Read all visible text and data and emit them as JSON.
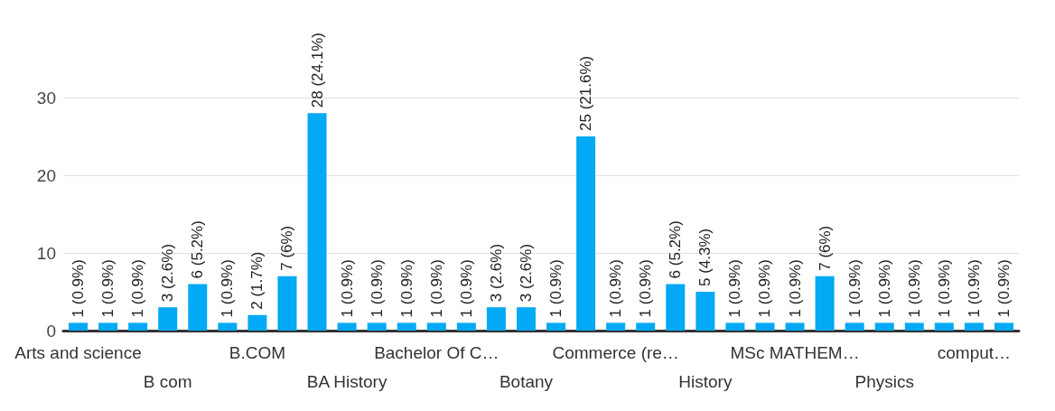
{
  "chart_data": {
    "type": "bar",
    "categories": [
      "Arts and science",
      null,
      null,
      "B com",
      null,
      null,
      "B.COM",
      null,
      null,
      "BA History",
      null,
      null,
      "Bachelor Of C…",
      null,
      null,
      "Botany",
      null,
      null,
      "Commerce (re…",
      null,
      null,
      "History",
      null,
      null,
      "MSc MATHEM…",
      null,
      null,
      "Physics",
      null,
      null,
      "comput…",
      null
    ],
    "values": [
      1,
      1,
      1,
      3,
      6,
      1,
      2,
      7,
      28,
      1,
      1,
      1,
      1,
      1,
      3,
      3,
      1,
      25,
      1,
      1,
      6,
      5,
      1,
      1,
      1,
      7,
      1,
      1,
      1,
      1,
      1,
      1
    ],
    "value_labels": [
      "1 (0.9%)",
      "1 (0.9%)",
      "1 (0.9%)",
      "3 (2.6%)",
      "6 (5.2%)",
      "1 (0.9%)",
      "2 (1.7%)",
      "7 (6%)",
      "28 (24.1%)",
      "1 (0.9%)",
      "1 (0.9%)",
      "1 (0.9%)",
      "1 (0.9%)",
      "1 (0.9%)",
      "3 (2.6%)",
      "3 (2.6%)",
      "1 (0.9%)",
      "25 (21.6%)",
      "1 (0.9%)",
      "1 (0.9%)",
      "6 (5.2%)",
      "5 (4.3%)",
      "1 (0.9%)",
      "1 (0.9%)",
      "1 (0.9%)",
      "7 (6%)",
      "1 (0.9%)",
      "1 (0.9%)",
      "1 (0.9%)",
      "1 (0.9%)",
      "1 (0.9%)",
      "1 (0.9%)"
    ],
    "color": "#03a9f4",
    "ylim": [
      0,
      30
    ],
    "yticks": [
      0,
      10,
      20,
      30
    ],
    "grid": "y"
  }
}
